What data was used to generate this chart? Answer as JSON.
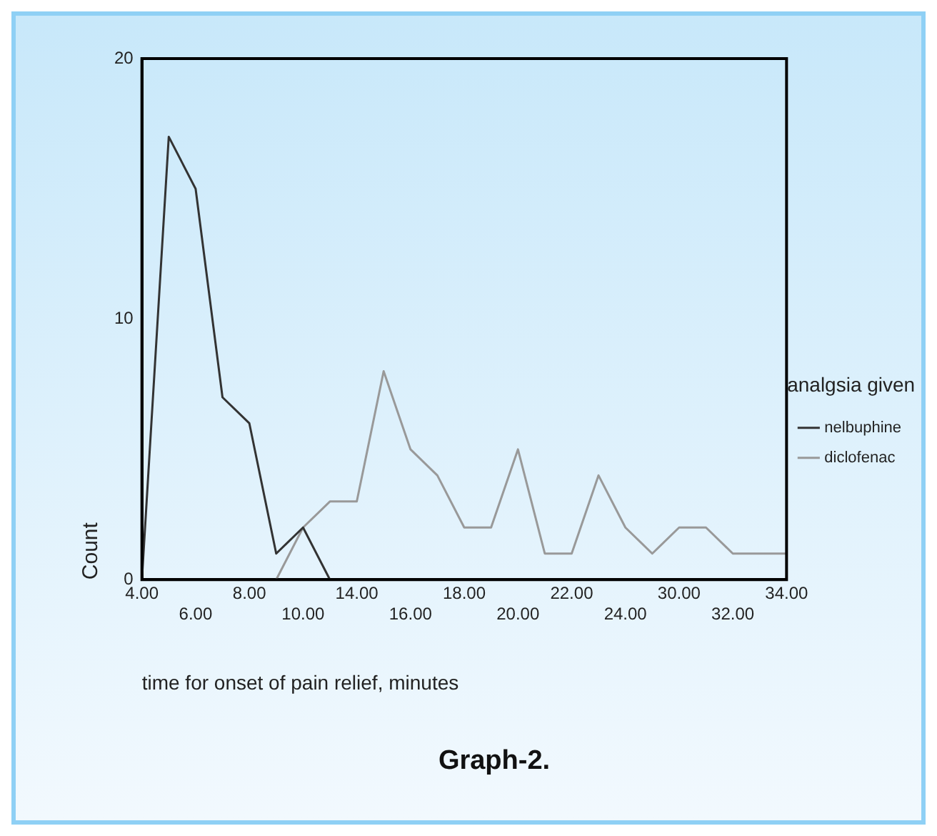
{
  "chart_data": {
    "type": "line",
    "title": "Graph-2.",
    "xlabel": "time for onset of pain relief, minutes",
    "ylabel": "Count",
    "legend_title": "analgsia given",
    "categories": [
      "4.00",
      null,
      "6.00",
      null,
      "8.00",
      null,
      "10.00",
      null,
      "14.00",
      null,
      "16.00",
      null,
      "18.00",
      null,
      "20.00",
      null,
      "22.00",
      null,
      "24.00",
      null,
      "30.00",
      null,
      "32.00",
      null,
      "34.00"
    ],
    "series": [
      {
        "name": "nelbuphine",
        "color": "#333333",
        "values": [
          0,
          17,
          15,
          7,
          6,
          1,
          2,
          0,
          null,
          null,
          null,
          null,
          null,
          null,
          null,
          null,
          null,
          null,
          null,
          null,
          null,
          null,
          null,
          null,
          null
        ]
      },
      {
        "name": "diclofenac",
        "color": "#999999",
        "values": [
          null,
          null,
          null,
          null,
          null,
          0,
          2,
          3,
          3,
          8,
          5,
          4,
          2,
          2,
          5,
          1,
          1,
          4,
          2,
          1,
          2,
          2,
          1,
          1,
          1
        ]
      }
    ],
    "ylim": [
      0,
      20
    ],
    "yticks": [
      0,
      10,
      20
    ],
    "grid": false,
    "legend": "right",
    "marker": "none",
    "line_style": "solid"
  }
}
